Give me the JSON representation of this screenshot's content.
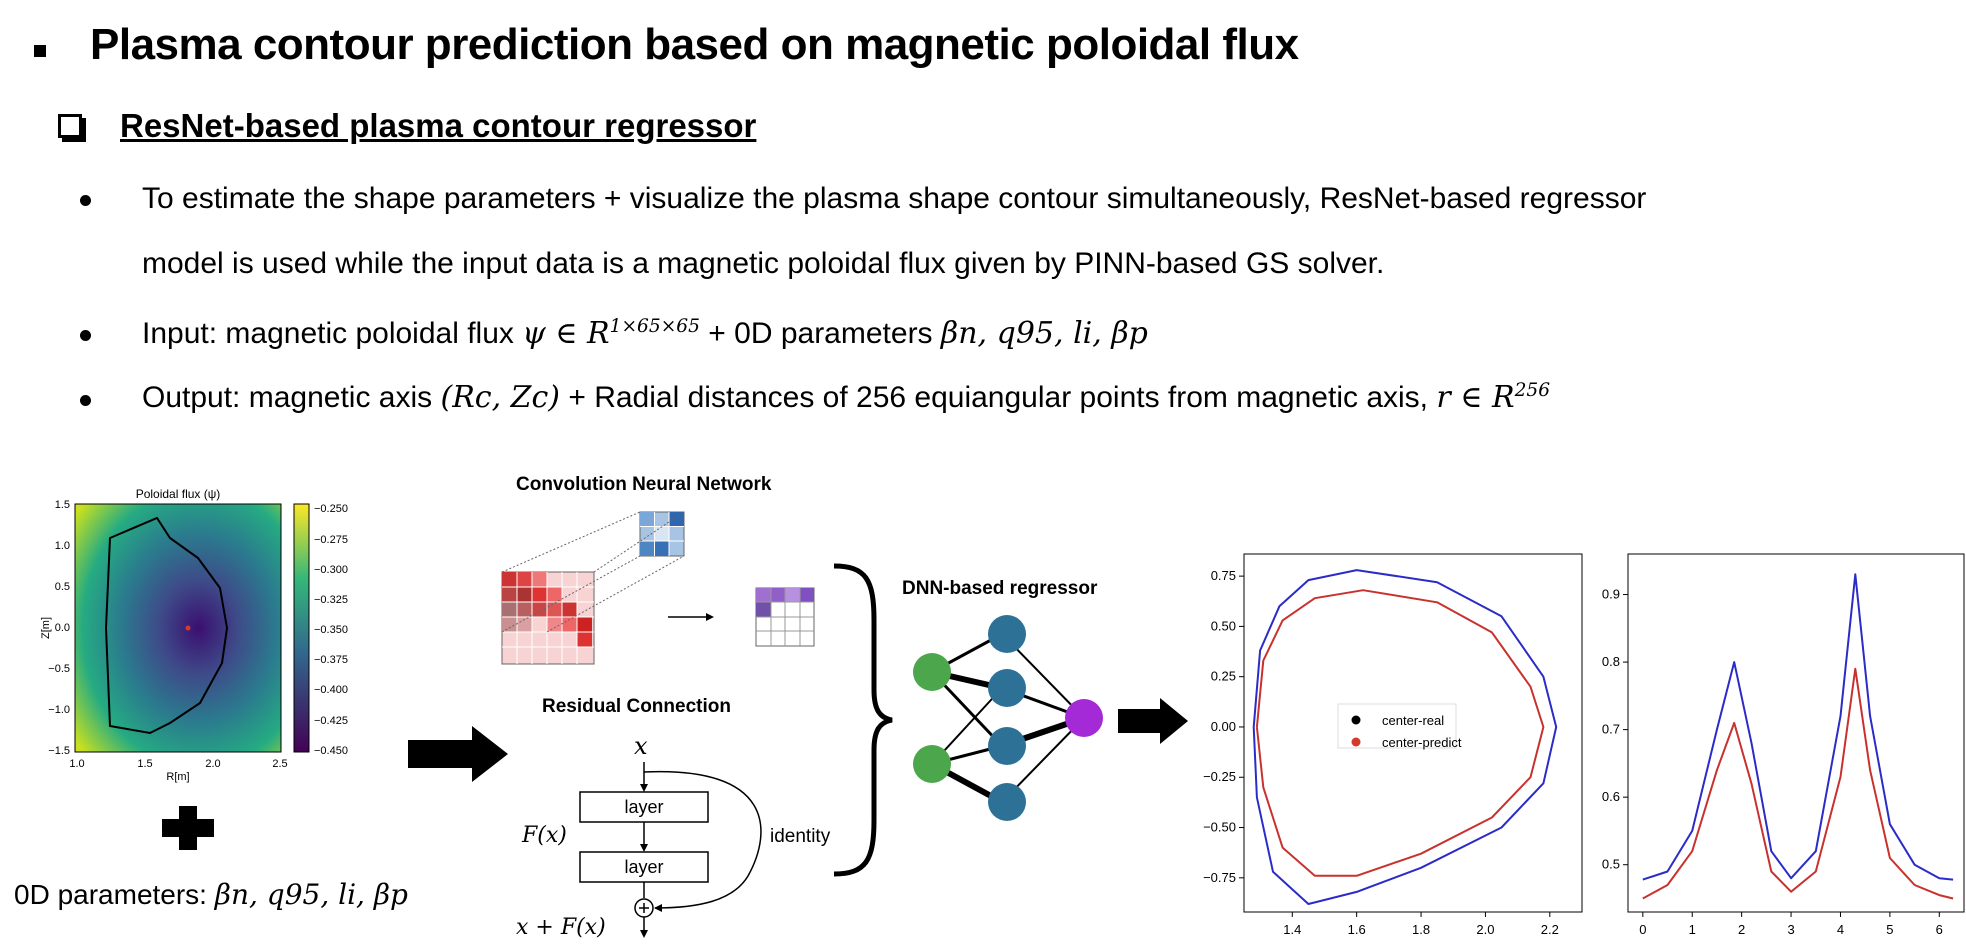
{
  "title": "Plasma contour prediction based on magnetic poloidal flux",
  "subtitle": "ResNet-based plasma contour regressor",
  "bullets": {
    "b1_line1": "To estimate the shape parameters + visualize the plasma shape contour simultaneously, ResNet-based regressor",
    "b1_line2": "model is used while the input data is a magnetic poloidal flux given by PINN-based GS solver.",
    "b2_pre": "Input: magnetic poloidal flux ",
    "b2_flux": "ψ ∈ R",
    "b2_flux_sup": "1×65×65",
    "b2_mid": " + 0D parameters ",
    "b2_params": "βn, q95, li, βp",
    "b3_pre": "Output: magnetic axis ",
    "b3_axis": "(Rc, Zc)",
    "b3_mid": " + Radial distances of 256 equiangular points from magnetic axis, ",
    "b3_r": "r ∈ R",
    "b3_r_sup": "256"
  },
  "flux_plot": {
    "title": "Poloidal flux (ψ)",
    "xlabel": "R[m]",
    "ylabel": "Z[m]",
    "x_ticks": [
      "1.0",
      "1.5",
      "2.0",
      "2.5"
    ],
    "y_ticks": [
      "1.5",
      "1.0",
      "0.5",
      "0.0",
      "−0.5",
      "−1.0",
      "−1.5"
    ],
    "colorbar_ticks": [
      "−0.250",
      "−0.275",
      "−0.300",
      "−0.325",
      "−0.350",
      "−0.375",
      "−0.400",
      "−0.425",
      "−0.450"
    ]
  },
  "zero_d_label": "0D parameters: ",
  "zero_d_params": "βn, q95, li, βp",
  "cnn_label": "Convolution Neural Network",
  "residual_label": "Residual Connection",
  "res_x": "x",
  "res_layer1": "layer",
  "res_layer2": "layer",
  "res_fx": "F(x)",
  "res_identity": "identity",
  "res_sum": "x + F(x)",
  "dnn_label": "DNN-based regressor",
  "colors": {
    "green": "#4ca64c",
    "teal": "#2e7196",
    "purple": "#a32ad6",
    "blue": "#2b2bc8",
    "red": "#c8322e"
  },
  "chart_data": [
    {
      "type": "line",
      "x_ticks": [
        "1.4",
        "1.6",
        "1.8",
        "2.0",
        "2.2"
      ],
      "y_ticks": [
        "0.75",
        "0.50",
        "0.25",
        "0.00",
        "−0.25",
        "−0.50",
        "−0.75"
      ],
      "xlim": [
        1.25,
        2.3
      ],
      "ylim": [
        -0.92,
        0.86
      ],
      "legend": [
        "center-real",
        "center-predict"
      ],
      "legend_colors": [
        "#000000",
        "#d43a2a"
      ],
      "legend_position": "center",
      "series": [
        {
          "color": "#2b2bc8",
          "x": [
            1.28,
            1.3,
            1.36,
            1.45,
            1.6,
            1.85,
            2.05,
            2.18,
            2.22,
            2.18,
            2.05,
            1.8,
            1.6,
            1.45,
            1.34,
            1.29,
            1.28
          ],
          "y": [
            0.0,
            0.38,
            0.6,
            0.73,
            0.78,
            0.72,
            0.55,
            0.25,
            0.0,
            -0.28,
            -0.5,
            -0.7,
            -0.82,
            -0.88,
            -0.72,
            -0.35,
            0.0
          ]
        },
        {
          "color": "#c8322e",
          "x": [
            1.29,
            1.31,
            1.37,
            1.47,
            1.62,
            1.85,
            2.02,
            2.14,
            2.18,
            2.14,
            2.02,
            1.8,
            1.6,
            1.47,
            1.37,
            1.31,
            1.29
          ],
          "y": [
            0.0,
            0.33,
            0.53,
            0.64,
            0.68,
            0.62,
            0.47,
            0.2,
            0.0,
            -0.25,
            -0.45,
            -0.63,
            -0.74,
            -0.74,
            -0.6,
            -0.3,
            0.0
          ]
        }
      ]
    },
    {
      "type": "line",
      "x_ticks": [
        "0",
        "1",
        "2",
        "3",
        "4",
        "5",
        "6"
      ],
      "y_ticks": [
        "0.9",
        "0.8",
        "0.7",
        "0.6",
        "0.5"
      ],
      "xlim": [
        -0.3,
        6.5
      ],
      "ylim": [
        0.43,
        0.96
      ],
      "series": [
        {
          "color": "#2b2bc8",
          "x": [
            0,
            0.5,
            1.0,
            1.5,
            1.85,
            2.2,
            2.6,
            3.0,
            3.5,
            4.0,
            4.3,
            4.6,
            5.0,
            5.5,
            6.0,
            6.28
          ],
          "y": [
            0.478,
            0.49,
            0.55,
            0.7,
            0.8,
            0.68,
            0.52,
            0.48,
            0.52,
            0.72,
            0.93,
            0.72,
            0.56,
            0.5,
            0.48,
            0.478
          ]
        },
        {
          "color": "#c8322e",
          "x": [
            0,
            0.5,
            1.0,
            1.5,
            1.85,
            2.2,
            2.6,
            3.0,
            3.5,
            4.0,
            4.3,
            4.6,
            5.0,
            5.5,
            6.0,
            6.28
          ],
          "y": [
            0.45,
            0.47,
            0.52,
            0.64,
            0.71,
            0.62,
            0.49,
            0.46,
            0.49,
            0.63,
            0.79,
            0.64,
            0.51,
            0.47,
            0.455,
            0.45
          ]
        }
      ]
    }
  ]
}
